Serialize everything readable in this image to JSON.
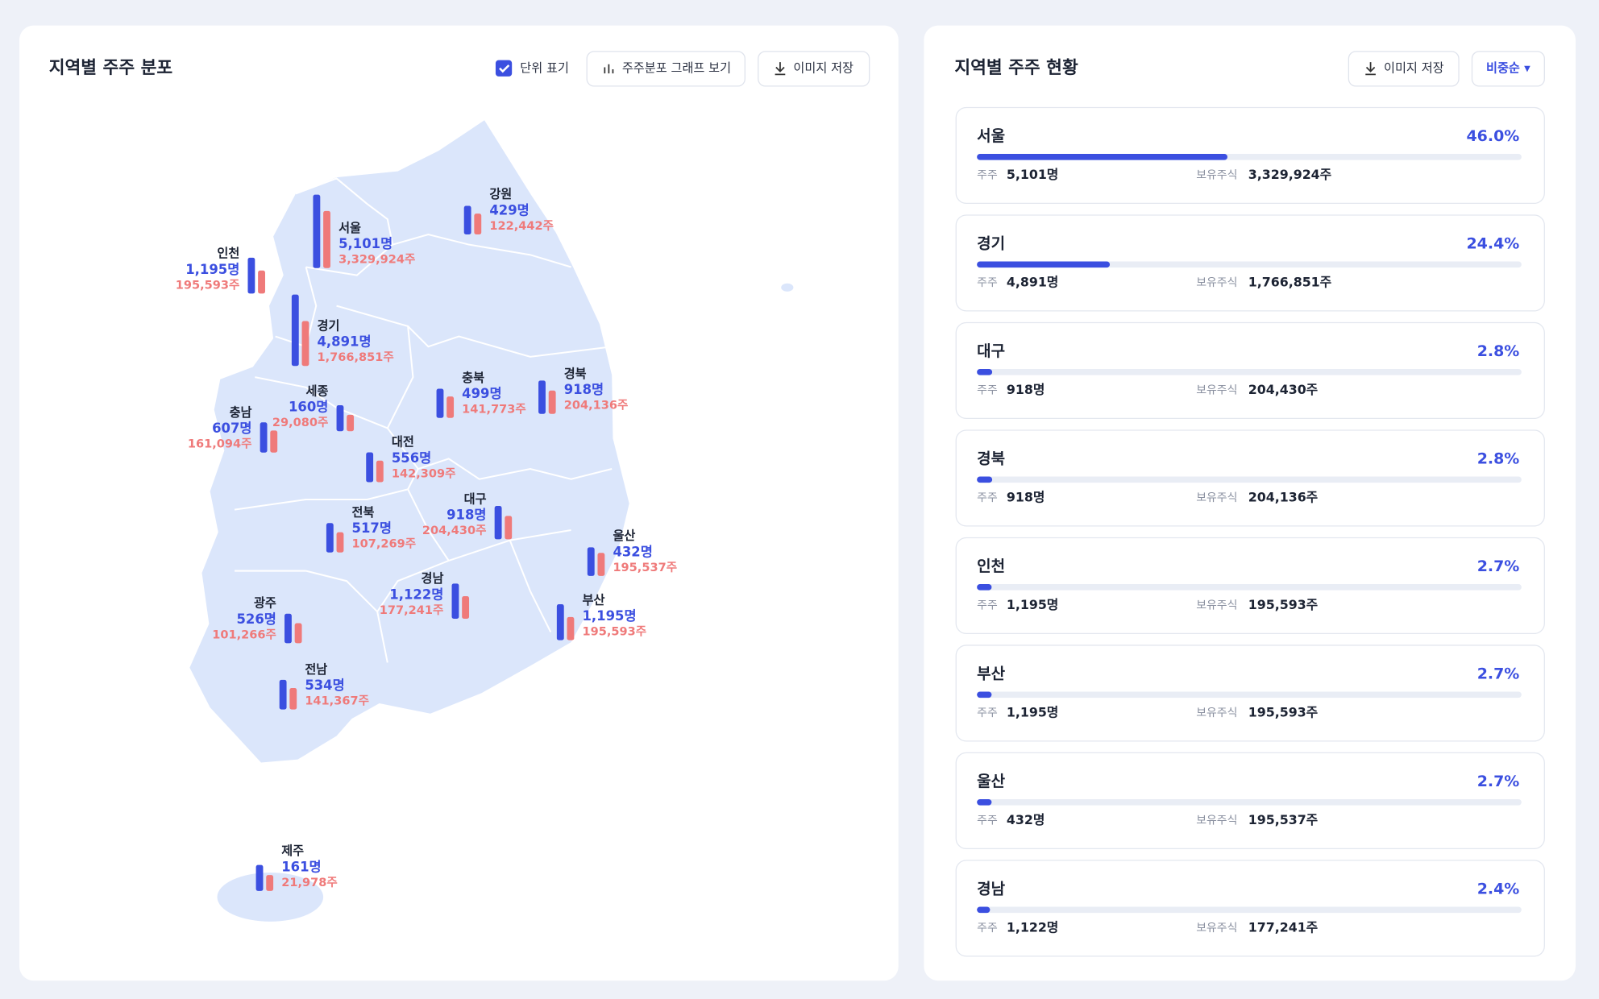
{
  "map": {
    "title": "지역별 주주 분포",
    "unit_toggle": "단위 표기",
    "buttons": [
      "주주분포 그래프 보기",
      "이미지 저장"
    ],
    "regions": [
      {
        "name": "강원",
        "holders": 429,
        "holders_label": "429명",
        "shares": 122442,
        "shares_label": "122,442주"
      },
      {
        "name": "서울",
        "holders": 5101,
        "holders_label": "5,101명",
        "shares": 3329924,
        "shares_label": "3,329,924주"
      },
      {
        "name": "인천",
        "holders": 1195,
        "holders_label": "1,195명",
        "shares": 195593,
        "shares_label": "195,593주"
      },
      {
        "name": "경기",
        "holders": 4891,
        "holders_label": "4,891명",
        "shares": 1766851,
        "shares_label": "1,766,851주"
      },
      {
        "name": "세종",
        "holders": 160,
        "holders_label": "160명",
        "shares": 29080,
        "shares_label": "29,080주"
      },
      {
        "name": "충남",
        "holders": 607,
        "holders_label": "607명",
        "shares": 161094,
        "shares_label": "161,094주"
      },
      {
        "name": "충북",
        "holders": 499,
        "holders_label": "499명",
        "shares": 141773,
        "shares_label": "141,773주"
      },
      {
        "name": "경북",
        "holders": 918,
        "holders_label": "918명",
        "shares": 204136,
        "shares_label": "204,136주"
      },
      {
        "name": "대전",
        "holders": 556,
        "holders_label": "556명",
        "shares": 142309,
        "shares_label": "142,309주"
      },
      {
        "name": "대구",
        "holders": 918,
        "holders_label": "918명",
        "shares": 204430,
        "shares_label": "204,430주"
      },
      {
        "name": "전북",
        "holders": 517,
        "holders_label": "517명",
        "shares": 107269,
        "shares_label": "107,269주"
      },
      {
        "name": "울산",
        "holders": 432,
        "holders_label": "432명",
        "shares": 195537,
        "shares_label": "195,537주"
      },
      {
        "name": "경남",
        "holders": 1122,
        "holders_label": "1,122명",
        "shares": 177241,
        "shares_label": "177,241주"
      },
      {
        "name": "부산",
        "holders": 1195,
        "holders_label": "1,195명",
        "shares": 195593,
        "shares_label": "195,593주"
      },
      {
        "name": "광주",
        "holders": 526,
        "holders_label": "526명",
        "shares": 101266,
        "shares_label": "101,266주"
      },
      {
        "name": "전남",
        "holders": 534,
        "holders_label": "534명",
        "shares": 141367,
        "shares_label": "141,367주"
      },
      {
        "name": "제주",
        "holders": 161,
        "holders_label": "161명",
        "shares": 21978,
        "shares_label": "21,978주"
      }
    ]
  },
  "status": {
    "title": "지역별 주주 현황",
    "buttons": [
      "이미지 저장",
      "비중순 ▾"
    ],
    "holders_caption": "주주",
    "shares_caption": "보유주식",
    "items": [
      {
        "region": "서울",
        "percent": 46.0,
        "percent_label": "46.0%",
        "holders": "5,101명",
        "shares": "3,329,924주"
      },
      {
        "region": "경기",
        "percent": 24.4,
        "percent_label": "24.4%",
        "holders": "4,891명",
        "shares": "1,766,851주"
      },
      {
        "region": "대구",
        "percent": 2.8,
        "percent_label": "2.8%",
        "holders": "918명",
        "shares": "204,430주"
      },
      {
        "region": "경북",
        "percent": 2.8,
        "percent_label": "2.8%",
        "holders": "918명",
        "shares": "204,136주"
      },
      {
        "region": "인천",
        "percent": 2.7,
        "percent_label": "2.7%",
        "holders": "1,195명",
        "shares": "195,593주"
      },
      {
        "region": "부산",
        "percent": 2.7,
        "percent_label": "2.7%",
        "holders": "1,195명",
        "shares": "195,593주"
      },
      {
        "region": "울산",
        "percent": 2.7,
        "percent_label": "2.7%",
        "holders": "432명",
        "shares": "195,537주"
      },
      {
        "region": "경남",
        "percent": 2.4,
        "percent_label": "2.4%",
        "holders": "1,122명",
        "shares": "177,241주"
      }
    ]
  }
}
